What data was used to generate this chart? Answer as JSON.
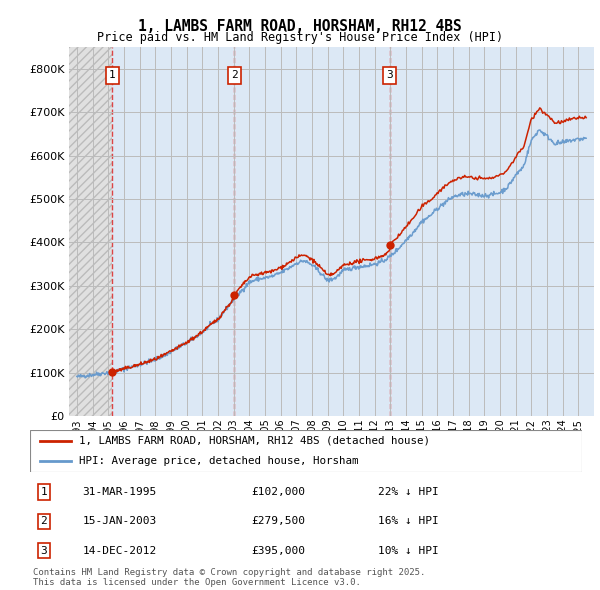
{
  "title": "1, LAMBS FARM ROAD, HORSHAM, RH12 4BS",
  "subtitle": "Price paid vs. HM Land Registry's House Price Index (HPI)",
  "ylim": [
    0,
    850000
  ],
  "yticks": [
    0,
    100000,
    200000,
    300000,
    400000,
    500000,
    600000,
    700000,
    800000
  ],
  "xlim_start": 1992.5,
  "xlim_end": 2026.0,
  "hpi_color": "#6699cc",
  "price_color": "#cc2200",
  "sale_dates": [
    1995.25,
    2003.04,
    2012.96
  ],
  "sale_prices": [
    102000,
    279500,
    395000
  ],
  "sale_labels": [
    "1",
    "2",
    "3"
  ],
  "sale_info": [
    {
      "num": "1",
      "date": "31-MAR-1995",
      "price": "£102,000",
      "hpi": "22% ↓ HPI"
    },
    {
      "num": "2",
      "date": "15-JAN-2003",
      "price": "£279,500",
      "hpi": "16% ↓ HPI"
    },
    {
      "num": "3",
      "date": "14-DEC-2012",
      "price": "£395,000",
      "hpi": "10% ↓ HPI"
    }
  ],
  "legend_line1": "1, LAMBS FARM ROAD, HORSHAM, RH12 4BS (detached house)",
  "legend_line2": "HPI: Average price, detached house, Horsham",
  "footer": "Contains HM Land Registry data © Crown copyright and database right 2025.\nThis data is licensed under the Open Government Licence v3.0.",
  "hpi_anchors_x": [
    1993.0,
    1994.0,
    1995.0,
    1995.5,
    1996.0,
    1997.0,
    1997.5,
    1998.0,
    1998.5,
    1999.0,
    1999.5,
    2000.0,
    2000.5,
    2001.0,
    2001.5,
    2002.0,
    2002.5,
    2003.0,
    2003.5,
    2004.0,
    2004.5,
    2005.0,
    2005.5,
    2006.0,
    2006.5,
    2007.0,
    2007.5,
    2008.0,
    2008.5,
    2009.0,
    2009.5,
    2010.0,
    2010.5,
    2011.0,
    2011.5,
    2012.0,
    2012.5,
    2013.0,
    2013.5,
    2014.0,
    2014.5,
    2015.0,
    2015.5,
    2016.0,
    2016.5,
    2017.0,
    2017.5,
    2018.0,
    2018.5,
    2019.0,
    2019.5,
    2020.0,
    2020.5,
    2021.0,
    2021.5,
    2022.0,
    2022.5,
    2023.0,
    2023.5,
    2024.0,
    2024.5,
    2025.0,
    2025.5
  ],
  "hpi_anchors_y": [
    90000,
    95000,
    100000,
    103000,
    108000,
    118000,
    124000,
    130000,
    138000,
    148000,
    158000,
    168000,
    180000,
    193000,
    208000,
    222000,
    246000,
    268000,
    288000,
    308000,
    315000,
    318000,
    322000,
    330000,
    340000,
    352000,
    358000,
    348000,
    332000,
    312000,
    318000,
    335000,
    340000,
    344000,
    346000,
    350000,
    356000,
    368000,
    385000,
    405000,
    425000,
    448000,
    460000,
    478000,
    492000,
    505000,
    510000,
    512000,
    510000,
    508000,
    510000,
    515000,
    528000,
    555000,
    575000,
    635000,
    660000,
    645000,
    628000,
    630000,
    635000,
    638000,
    640000
  ]
}
